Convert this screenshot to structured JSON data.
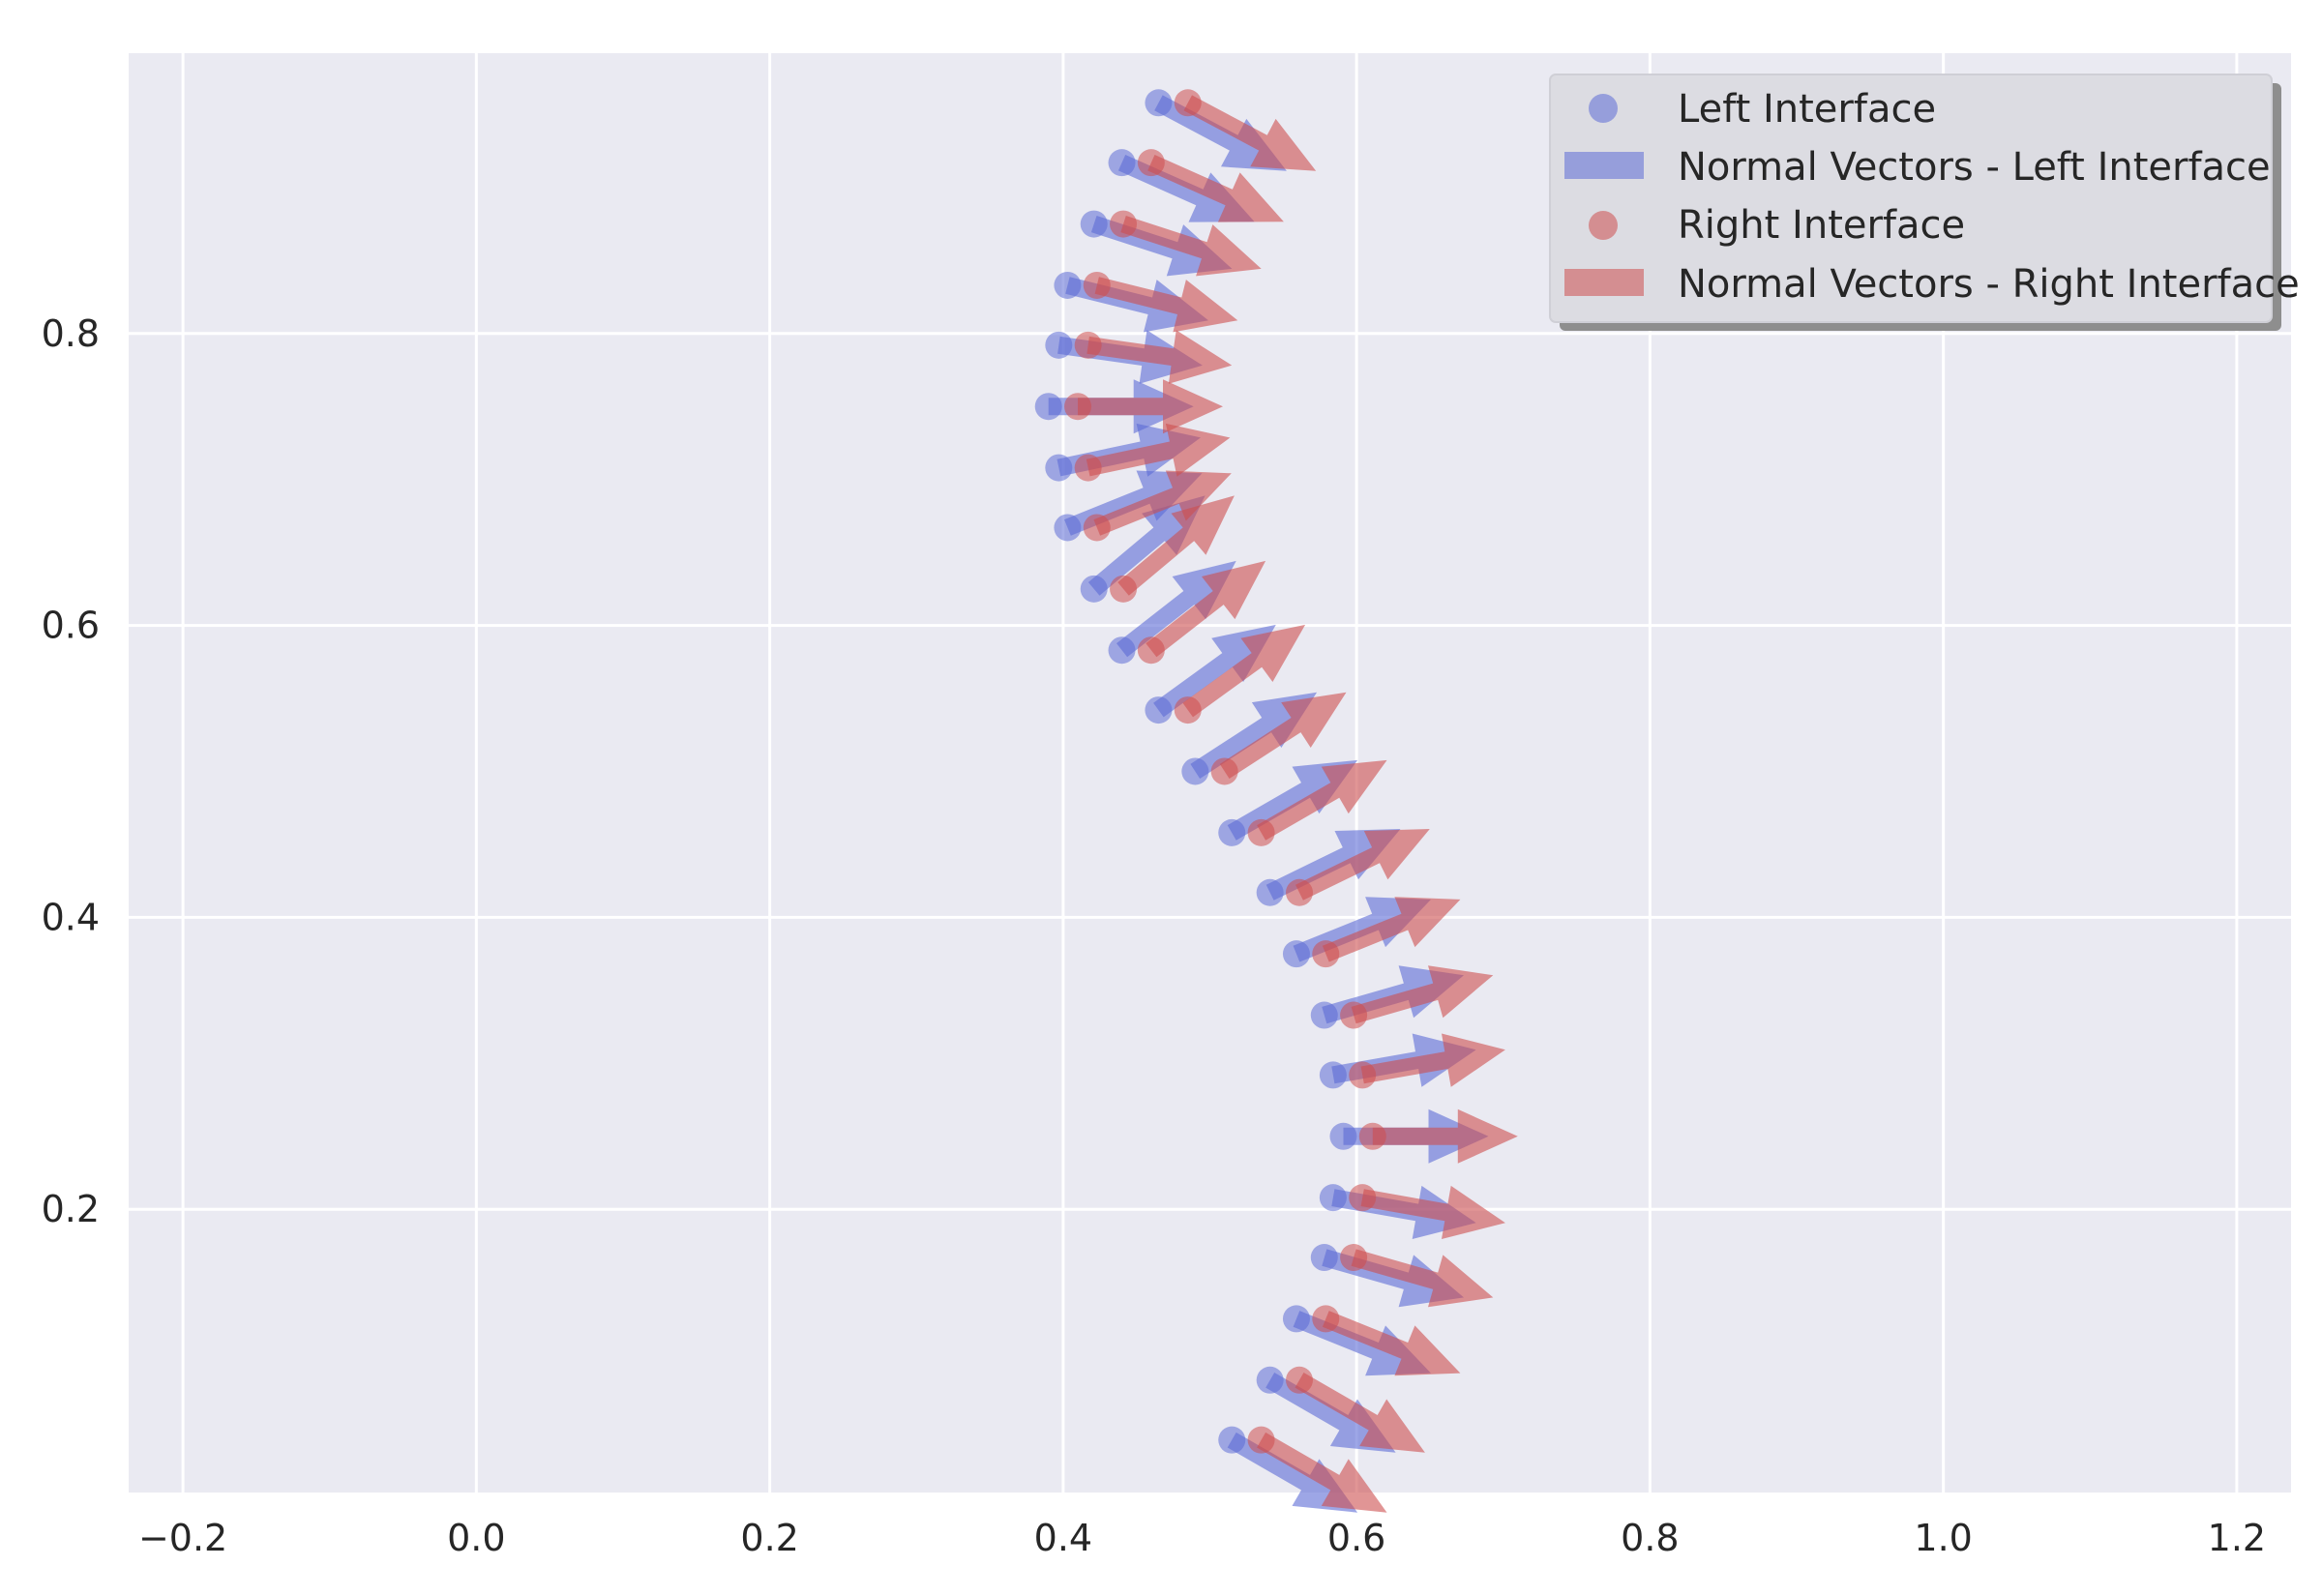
{
  "chart_data": {
    "type": "quiver",
    "title": "",
    "xlabel": "",
    "ylabel": "",
    "xlim": [
      -0.237,
      1.237
    ],
    "ylim": [
      0.006,
      0.992
    ],
    "grid": true,
    "legend_placement": "top-right",
    "x_ticks": [
      "−0.2",
      "0.0",
      "0.2",
      "0.4",
      "0.6",
      "0.8",
      "1.0",
      "1.2"
    ],
    "x_tick_values": [
      -0.2,
      0.0,
      0.2,
      0.4,
      0.6,
      0.8,
      1.0,
      1.2
    ],
    "y_ticks": [
      "0.2",
      "0.4",
      "0.6",
      "0.8"
    ],
    "y_tick_values": [
      0.2,
      0.4,
      0.6,
      0.8
    ],
    "y": [
      0.042,
      0.083,
      0.125,
      0.167,
      0.208,
      0.25,
      0.292,
      0.333,
      0.375,
      0.417,
      0.458,
      0.5,
      0.542,
      0.583,
      0.625,
      0.667,
      0.708,
      0.75,
      0.792,
      0.833,
      0.875,
      0.917,
      0.958
    ],
    "angles_deg": [
      -30,
      -30,
      -22,
      -16,
      -10,
      0,
      10,
      16,
      22,
      26,
      30,
      33,
      36,
      38,
      40,
      22,
      12,
      0,
      -8,
      -14,
      -18,
      -24,
      -28
    ],
    "series": [
      {
        "name": "Left Interface",
        "kind": "scatter",
        "color": "#5c6bd6",
        "x": [
          0.515,
          0.541,
          0.559,
          0.578,
          0.584,
          0.591,
          0.584,
          0.578,
          0.559,
          0.541,
          0.515,
          0.49,
          0.465,
          0.44,
          0.421,
          0.403,
          0.397,
          0.39,
          0.397,
          0.403,
          0.421,
          0.44,
          0.465
        ]
      },
      {
        "name": "Normal Vectors - Left Interface",
        "kind": "quiver",
        "color": "#5c6bd6"
      },
      {
        "name": "Right Interface",
        "kind": "scatter",
        "color": "#cd4f4f",
        "x": [
          0.535,
          0.561,
          0.579,
          0.598,
          0.604,
          0.611,
          0.604,
          0.598,
          0.579,
          0.561,
          0.535,
          0.51,
          0.485,
          0.46,
          0.441,
          0.423,
          0.417,
          0.41,
          0.417,
          0.423,
          0.441,
          0.46,
          0.485
        ]
      },
      {
        "name": "Normal Vectors - Right Interface",
        "kind": "quiver",
        "color": "#cd4f4f"
      }
    ]
  }
}
